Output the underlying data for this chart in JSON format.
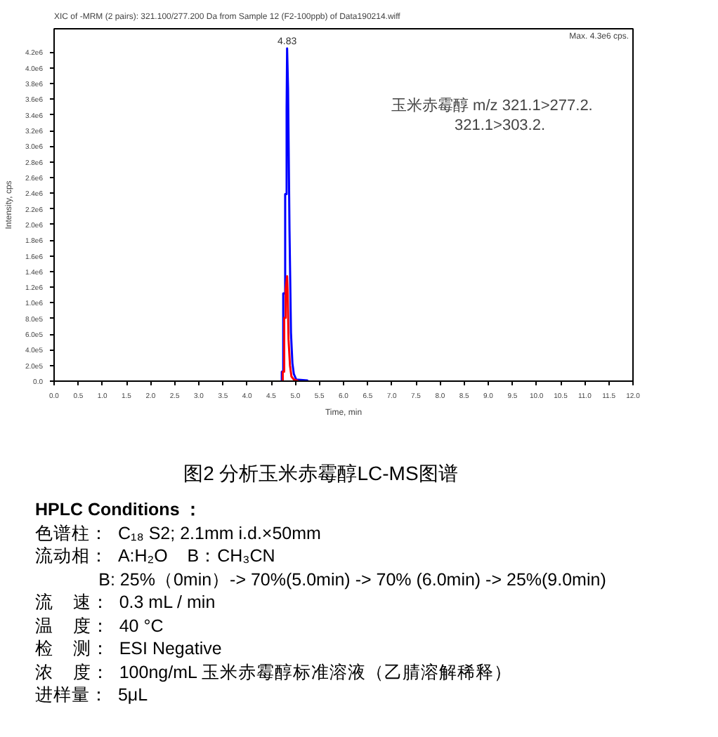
{
  "chart_data": {
    "type": "line",
    "title": "XIC of -MRM (2 pairs): 321.100/277.200 Da from Sample 12 (F2-100ppb) of Data190214.wiff",
    "xlabel": "Time, min",
    "ylabel": "Intensity, cps",
    "xlim": [
      0,
      12
    ],
    "ylim": [
      0,
      4500000
    ],
    "xticks": [
      {
        "value": 0,
        "label": "0.0"
      },
      {
        "value": 0.5,
        "label": "0.5"
      },
      {
        "value": 1,
        "label": "1.0"
      },
      {
        "value": 1.5,
        "label": "1.5"
      },
      {
        "value": 2,
        "label": "2.0"
      },
      {
        "value": 2.5,
        "label": "2.5"
      },
      {
        "value": 3,
        "label": "3.0"
      },
      {
        "value": 3.5,
        "label": "3.5"
      },
      {
        "value": 4,
        "label": "4.0"
      },
      {
        "value": 4.5,
        "label": "4.5"
      },
      {
        "value": 5,
        "label": "5.0"
      },
      {
        "value": 5.5,
        "label": "5.5"
      },
      {
        "value": 6,
        "label": "6.0"
      },
      {
        "value": 6.5,
        "label": "6.5"
      },
      {
        "value": 7,
        "label": "7.0"
      },
      {
        "value": 7.5,
        "label": "7.5"
      },
      {
        "value": 8,
        "label": "8.0"
      },
      {
        "value": 8.5,
        "label": "8.5"
      },
      {
        "value": 9,
        "label": "9.0"
      },
      {
        "value": 9.5,
        "label": "9.5"
      },
      {
        "value": 10,
        "label": "10.0"
      },
      {
        "value": 10.5,
        "label": "10.5"
      },
      {
        "value": 11,
        "label": "11.0"
      },
      {
        "value": 11.5,
        "label": "11.5"
      },
      {
        "value": 12,
        "label": "12.0"
      }
    ],
    "yticks": [
      {
        "value": 0,
        "label": "0.0"
      },
      {
        "value": 200000,
        "label": "2.0e5"
      },
      {
        "value": 400000,
        "label": "4.0e5"
      },
      {
        "value": 600000,
        "label": "6.0e5"
      },
      {
        "value": 800000,
        "label": "8.0e5"
      },
      {
        "value": 1000000,
        "label": "1.0e6"
      },
      {
        "value": 1200000,
        "label": "1.2e6"
      },
      {
        "value": 1400000,
        "label": "1.4e6"
      },
      {
        "value": 1600000,
        "label": "1.6e6"
      },
      {
        "value": 1800000,
        "label": "1.8e6"
      },
      {
        "value": 2000000,
        "label": "2.0e6"
      },
      {
        "value": 2200000,
        "label": "2.2e6"
      },
      {
        "value": 2400000,
        "label": "2.4e6"
      },
      {
        "value": 2600000,
        "label": "2.6e6"
      },
      {
        "value": 2800000,
        "label": "2.8e6"
      },
      {
        "value": 3000000,
        "label": "3.0e6"
      },
      {
        "value": 3200000,
        "label": "3.2e6"
      },
      {
        "value": 3400000,
        "label": "3.4e6"
      },
      {
        "value": 3600000,
        "label": "3.6e6"
      },
      {
        "value": 3800000,
        "label": "3.8e6"
      },
      {
        "value": 4000000,
        "label": "4.0e6"
      },
      {
        "value": 4200000,
        "label": "4.2e6"
      }
    ],
    "grid": false,
    "marker": "none",
    "line_style": "solid",
    "series": [
      {
        "color": "#0000ff",
        "x": [
          4.72,
          4.72,
          4.75,
          4.75,
          4.79,
          4.79,
          4.82,
          4.82,
          4.83,
          4.85,
          4.88,
          4.91,
          4.94,
          4.97,
          5.02,
          5.25,
          5.25
        ],
        "values": [
          0,
          120000,
          120000,
          1120000,
          1120000,
          2390000,
          2390000,
          3480000,
          4250000,
          3730000,
          1920000,
          620000,
          230000,
          90000,
          20000,
          10000,
          0
        ]
      },
      {
        "color": "#ff0000",
        "x": [
          4.74,
          4.74,
          4.77,
          4.77,
          4.8,
          4.8,
          4.83,
          4.84,
          4.86,
          4.89,
          4.92,
          4.97,
          5.06
        ],
        "values": [
          0,
          120000,
          120000,
          810000,
          810000,
          1170000,
          1340000,
          1170000,
          530000,
          200000,
          60000,
          20000,
          0
        ]
      }
    ],
    "annotations": [
      "Max. 4.3e6 cps.",
      "玉米赤霉醇  m/z      321.1>277.2.",
      "321.1>303.2.",
      {
        "text": "4.83",
        "x": 4.83,
        "y": 4250000
      },
      "图2 分析玉米赤霉醇LC-MS图谱",
      "HPLC Conditions ：",
      "色谱柱：  C₁₈ S2; 2.1mm i.d.×50mm",
      "流动相：  A:H₂O    B：CH₃CN",
      "             B: 25%（0min）-> 70%(5.0min) -> 70% (6.0min) -> 25%(9.0min)",
      "流    速：  0.3 mL / min",
      "温    度：  40 °C",
      "检    测：  ESI Negative",
      "浓    度：  100ng/mL 玉米赤霉醇标准溶液（乙腈溶解稀释）",
      "进样量：  5μL"
    ]
  }
}
